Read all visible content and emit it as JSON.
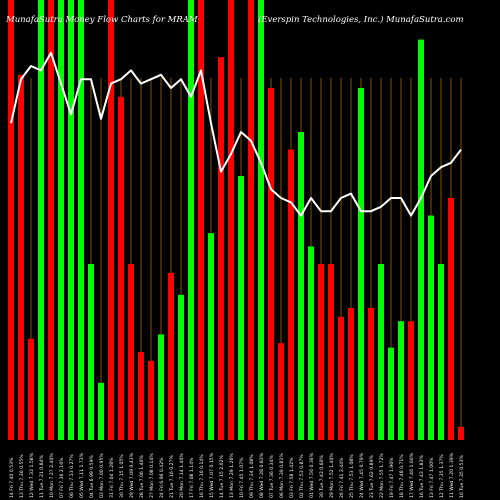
{
  "header": {
    "left_title": "MunafaSutra  Money Flow  Charts for MRAM",
    "right_title": "(Everspin  Technologies,  Inc.) MunafaSutra.com"
  },
  "colors": {
    "background": "#000000",
    "up_bar": "#00ff00",
    "down_bar": "#ff0000",
    "grid_line": "#a0640a",
    "price_line": "#ffffff",
    "text": "#ffffff"
  },
  "chart_data": {
    "type": "bar",
    "title": "MunafaSutra  Money Flow  Charts for MRAM",
    "subtitle": "(Everspin  Technologies,  Inc.) MunafaSutra.com",
    "grid": true,
    "ylim": [
      0,
      100
    ],
    "categories": [
      "14 Fri 7.40 0.53%",
      "13 Thu 7.36 0.55%",
      "12 Wed 7.32 1.58%",
      "11 Tue 7.21 0.84%",
      "10 Mon 7.27 2.40%",
      "07 Fri 7.36 2.16%",
      "06 Thu 7.13 0.27%",
      "05 Wed 7.11 1.73%",
      "04 Tue 6.99 0.59%",
      "03 Mon 7.00 0.95%",
      "31 Fri 7.04 1.28%",
      "30 Thu 7.15 1.05%",
      "29 Wed 7.09 0.43%",
      "28 Tue 7.06 1.40%",
      "27 Mon 7.08 0.14%",
      "24 Fri 6.96 0.42%",
      "21 Tue 7.16 0.27%",
      "20 Mon 7.14 1.40%",
      "17 Fri 7.08 1.14%",
      "16 Thu 7.16 0.14%",
      "15 Wed 7.07 0.15%",
      "14 Tue 7.15 2.02%",
      "13 Mon 7.29 1.26%",
      "10 Fri 7.45 1.07%",
      "09 Thu 7.34 1.08%",
      "08 Wed 7.28 0.83%",
      "07 Tue 7.36 0.34%",
      "06 Mon 7.39 0.81%",
      "03 Fri 7.58 1.42%",
      "02 Thu 7.53 0.87%",
      "01 Wed 7.56 0.36%",
      "30 Tue 7.43 0.60%",
      "29 Mon 7.52 1.40%",
      "26 Fri 7.41 2.44%",
      "25 Thu 7.53 1.08%",
      "24 Wed 7.45 0.79%",
      "23 Tue 7.62 0.89%",
      "22 Mon 7.55 1.72%",
      "19 Fri 7.47 1.96%",
      "18 Thu 7.48 0.71%",
      "17 Wed 7.46 1.60%",
      "16 Tue 7.43 1.83%",
      "13 Fri 7.47 1.00%",
      "12 Thu 7.35 1.37%",
      "11 Wed 7.20 1.39%",
      "10 Tue 7.35 0.53%"
    ],
    "series": [
      {
        "directions": [
          "down",
          "down",
          "down",
          "up",
          "down",
          "up",
          "up",
          "up",
          "up",
          "up",
          "down",
          "down",
          "down",
          "down",
          "down",
          "up",
          "down",
          "up",
          "up",
          "down",
          "up",
          "down",
          "down",
          "up",
          "down",
          "up",
          "down",
          "down",
          "down",
          "up",
          "up",
          "down",
          "down",
          "down",
          "down",
          "up",
          "down",
          "up",
          "up",
          "up",
          "down",
          "up",
          "up",
          "up",
          "down",
          "down"
        ],
        "values": [
          100,
          83,
          23,
          100,
          100,
          100,
          100,
          100,
          40,
          13,
          100,
          78,
          40,
          20,
          18,
          24,
          38,
          33,
          100,
          100,
          47,
          87,
          100,
          60,
          100,
          100,
          80,
          22,
          66,
          70,
          44,
          40,
          40,
          28,
          30,
          80,
          30,
          40,
          21,
          27,
          27,
          91,
          51,
          40,
          55,
          3
        ],
        "line": [
          72,
          82,
          85,
          84,
          88,
          81,
          74,
          82,
          82,
          73,
          81,
          82,
          84,
          81,
          82,
          83,
          80,
          82,
          78,
          84,
          72,
          61,
          65,
          70,
          68,
          63,
          57,
          55,
          54,
          51,
          55,
          52,
          52,
          55,
          56,
          52,
          52,
          53,
          55,
          55,
          51,
          55,
          60,
          62,
          63,
          66
        ]
      }
    ]
  }
}
